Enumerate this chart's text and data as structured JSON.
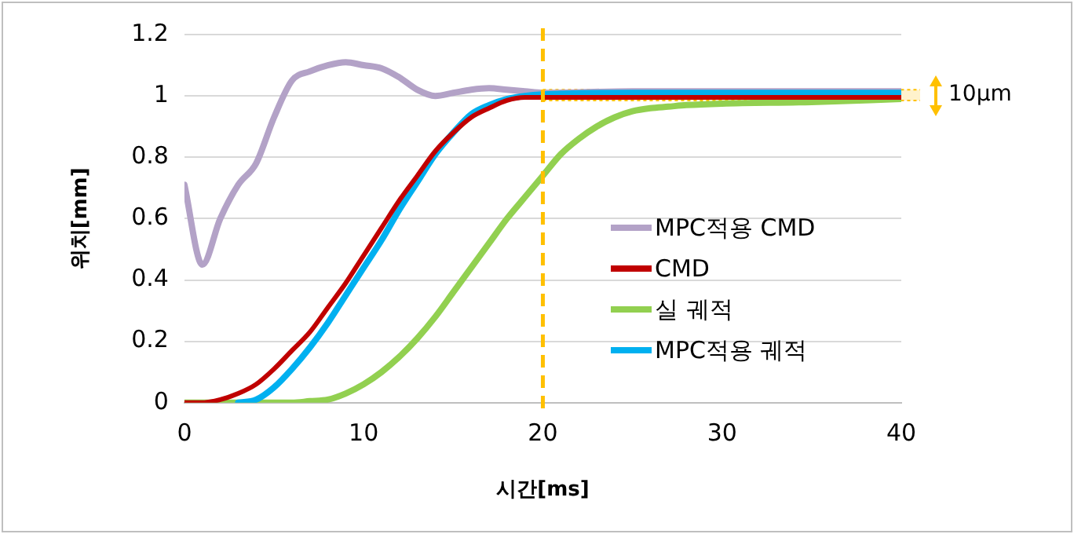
{
  "chart_data": {
    "type": "line",
    "xlabel": "시간[ms]",
    "ylabel": "위치[mm]",
    "xlim": [
      0,
      40
    ],
    "xticks": [
      0,
      10,
      20,
      30,
      40
    ],
    "ylim": [
      0,
      1.2
    ],
    "yticks": [
      0,
      0.2,
      0.4,
      0.6,
      0.8,
      1,
      1.2
    ],
    "grid": "y",
    "legend": "right",
    "marker": "none",
    "line_style": "solid",
    "series": [
      {
        "name": "MPC적용 CMD",
        "color": "#b3a2c7",
        "x": [
          0,
          1,
          2,
          3,
          4,
          5,
          6,
          7,
          8,
          9,
          10,
          11,
          12,
          13,
          14,
          15,
          16,
          17,
          18,
          19,
          20,
          25,
          30,
          35,
          40
        ],
        "values": [
          0.71,
          0.45,
          0.6,
          0.71,
          0.78,
          0.93,
          1.05,
          1.08,
          1.1,
          1.11,
          1.1,
          1.09,
          1.06,
          1.02,
          1.0,
          1.01,
          1.02,
          1.025,
          1.02,
          1.015,
          1.01,
          1.015,
          1.015,
          1.015,
          1.015
        ]
      },
      {
        "name": "CMD",
        "color": "#c00000",
        "x": [
          0,
          1,
          2,
          3,
          4,
          5,
          6,
          7,
          8,
          9,
          10,
          11,
          12,
          13,
          14,
          15,
          16,
          17,
          18,
          19,
          20,
          25,
          30,
          35,
          40
        ],
        "values": [
          0,
          0,
          0.01,
          0.03,
          0.06,
          0.11,
          0.17,
          0.23,
          0.31,
          0.39,
          0.48,
          0.57,
          0.66,
          0.74,
          0.82,
          0.88,
          0.93,
          0.96,
          0.985,
          0.995,
          0.995,
          0.995,
          0.995,
          0.995,
          0.995
        ]
      },
      {
        "name": "실 궤적",
        "color": "#92d050",
        "x": [
          0,
          6,
          7,
          8,
          9,
          10,
          11,
          12,
          13,
          14,
          15,
          16,
          17,
          18,
          19,
          20,
          21,
          22,
          23,
          24,
          25,
          26,
          27,
          28,
          30,
          35,
          40
        ],
        "values": [
          0,
          0,
          0.005,
          0.01,
          0.03,
          0.06,
          0.1,
          0.15,
          0.21,
          0.28,
          0.36,
          0.44,
          0.52,
          0.6,
          0.67,
          0.74,
          0.81,
          0.86,
          0.9,
          0.93,
          0.95,
          0.96,
          0.965,
          0.97,
          0.975,
          0.98,
          0.99
        ]
      },
      {
        "name": "MPC적용 궤적",
        "color": "#00b0f0",
        "x": [
          3,
          4,
          5,
          6,
          7,
          8,
          9,
          10,
          11,
          12,
          13,
          14,
          15,
          16,
          17,
          18,
          19,
          20,
          25,
          30,
          35,
          40
        ],
        "values": [
          0,
          0.01,
          0.05,
          0.11,
          0.18,
          0.26,
          0.35,
          0.44,
          0.53,
          0.63,
          0.72,
          0.81,
          0.88,
          0.94,
          0.97,
          0.99,
          1.0,
          1.005,
          1.01,
          1.01,
          1.01,
          1.01
        ]
      }
    ],
    "ref_lines": [
      {
        "axis": "x",
        "value": 20,
        "color": "#ffc000",
        "line_style": "dashed"
      }
    ],
    "bands": [
      {
        "axis": "y",
        "from": 0.985,
        "to": 1.02,
        "label": "10μm",
        "color": "#ffc000"
      }
    ]
  }
}
